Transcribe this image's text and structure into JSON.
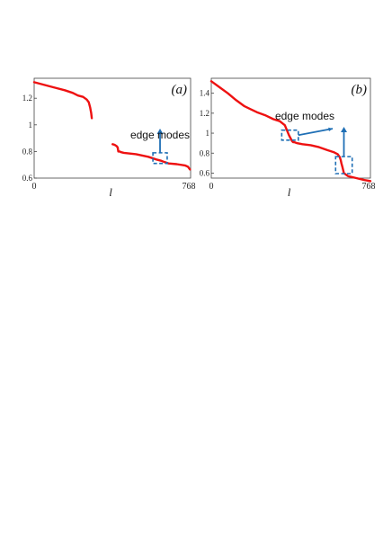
{
  "chart_data": [
    {
      "type": "line",
      "panel_label": "(a)",
      "title": "",
      "xlabel": "l",
      "ylabel": "",
      "xlim": [
        0,
        768
      ],
      "ylim": [
        0.6,
        1.35
      ],
      "x_ticks": [
        "0",
        "768"
      ],
      "y_ticks": [
        {
          "value": 0.6,
          "label": "0.6"
        },
        {
          "value": 0.8,
          "label": "0.8"
        },
        {
          "value": 1.0,
          "label": "1"
        },
        {
          "value": 1.2,
          "label": "1.2"
        }
      ],
      "series": [
        {
          "color": "#ee1111",
          "segments": [
            {
              "x": [
                0,
                50,
                100,
                150,
                190,
                215,
                240,
                258,
                268,
                275,
                280,
                283
              ],
              "y": [
                1.32,
                1.3,
                1.28,
                1.26,
                1.24,
                1.22,
                1.21,
                1.19,
                1.17,
                1.13,
                1.09,
                1.05
              ]
            },
            {
              "x": [
                385,
                395,
                405,
                410,
                413,
                416,
                420,
                425,
                440,
                500,
                560,
                600,
                625,
                640,
                660,
                700,
                740,
                755,
                765
              ],
              "y": [
                0.855,
                0.85,
                0.84,
                0.83,
                0.8,
                0.8,
                0.8,
                0.795,
                0.79,
                0.78,
                0.76,
                0.74,
                0.73,
                0.72,
                0.71,
                0.705,
                0.695,
                0.685,
                0.665
              ]
            }
          ]
        }
      ],
      "annotations": [
        {
          "text": "edge modes",
          "box_center": {
            "x": 618,
            "y": 0.75
          },
          "box_size": {
            "dx": 70,
            "dy": 0.08
          }
        }
      ],
      "annotation_color": "#1f6fb5",
      "grid": false
    },
    {
      "type": "line",
      "panel_label": "(b)",
      "title": "",
      "xlabel": "l",
      "ylabel": "",
      "xlim": [
        0,
        768
      ],
      "ylim": [
        0.55,
        1.55
      ],
      "x_ticks": [
        "0",
        "768"
      ],
      "y_ticks": [
        {
          "value": 0.6,
          "label": "0.6"
        },
        {
          "value": 0.8,
          "label": "0.8"
        },
        {
          "value": 1.0,
          "label": "1"
        },
        {
          "value": 1.2,
          "label": "1.2"
        },
        {
          "value": 1.4,
          "label": "1.4"
        }
      ],
      "series": [
        {
          "color": "#ee1111",
          "segments": [
            {
              "x": [
                0,
                40,
                80,
                120,
                160,
                190,
                220,
                260,
                300,
                330,
                355,
                365,
                375,
                385,
                390,
                395,
                400,
                415,
                440,
                480,
                520,
                560,
                590,
                610,
                620,
                625,
                628,
                633,
                640,
                660,
                700,
                740,
                768
              ],
              "y": [
                1.52,
                1.46,
                1.4,
                1.33,
                1.27,
                1.24,
                1.21,
                1.18,
                1.14,
                1.12,
                1.08,
                1.03,
                0.98,
                0.94,
                0.92,
                0.91,
                0.91,
                0.9,
                0.89,
                0.88,
                0.86,
                0.83,
                0.81,
                0.79,
                0.76,
                0.73,
                0.7,
                0.66,
                0.6,
                0.57,
                0.55,
                0.53,
                0.52
              ]
            }
          ]
        }
      ],
      "annotations": [
        {
          "text": "edge modes",
          "box_center": {
            "x": 380,
            "y": 0.98
          },
          "box_size": {
            "dx": 80,
            "dy": 0.1
          }
        },
        {
          "text": "",
          "box_center": {
            "x": 640,
            "y": 0.68
          },
          "box_size": {
            "dx": 80,
            "dy": 0.17
          }
        }
      ],
      "annotation_color": "#1f6fb5",
      "grid": false
    }
  ]
}
